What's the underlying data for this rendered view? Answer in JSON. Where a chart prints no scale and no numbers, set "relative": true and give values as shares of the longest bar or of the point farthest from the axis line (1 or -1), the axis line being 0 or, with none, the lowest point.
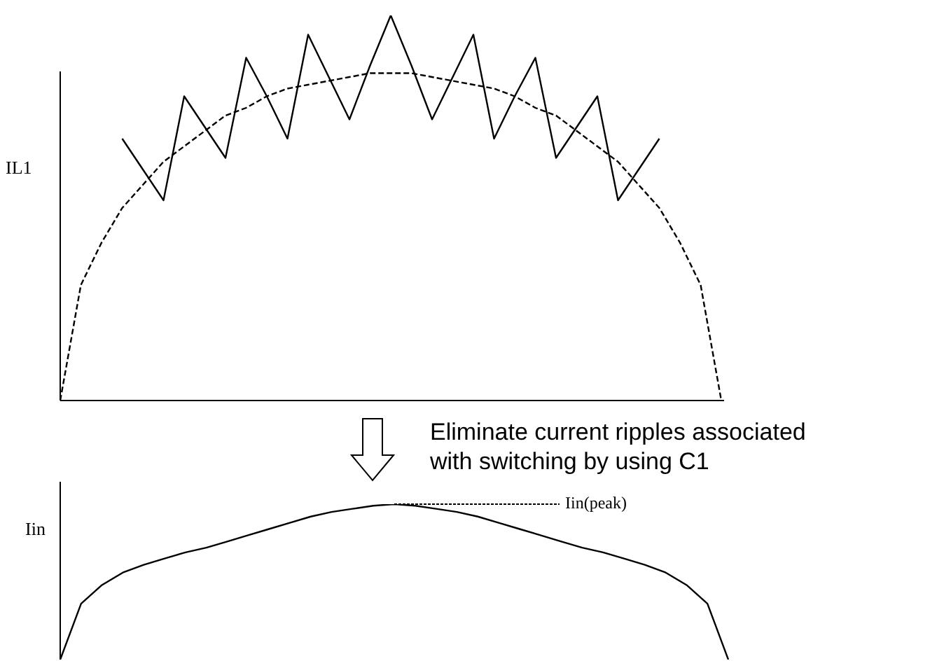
{
  "chart_data": [
    {
      "type": "line",
      "relative": true,
      "ylabel": "IL1",
      "marker": "none",
      "categories": [
        null,
        null,
        null,
        null,
        null,
        null,
        null,
        null,
        null,
        null,
        null,
        null,
        null,
        null,
        null,
        null,
        null,
        null,
        null,
        null,
        null,
        null,
        null,
        null,
        null,
        null,
        null,
        null,
        null,
        null,
        null,
        null,
        null
      ],
      "series": [
        {
          "color": "#000000",
          "line_style": "solid",
          "values": [
            null,
            null,
            null,
            0.68,
            0.6,
            0.52,
            0.79,
            0.71,
            0.63,
            0.89,
            0.79,
            0.68,
            0.95,
            0.84,
            0.73,
            0.87,
            1.0,
            0.87,
            0.73,
            0.84,
            0.95,
            0.68,
            0.79,
            0.89,
            0.63,
            0.71,
            0.79,
            0.52,
            0.6,
            0.68,
            null,
            null,
            null
          ]
        },
        {
          "color": "#000000",
          "line_style": "dashed",
          "values": [
            0,
            0.3,
            0.41,
            0.5,
            0.56,
            0.62,
            0.66,
            0.7,
            0.74,
            0.76,
            0.79,
            0.81,
            0.82,
            0.83,
            0.84,
            0.85,
            0.85,
            0.85,
            0.84,
            0.83,
            0.82,
            0.81,
            0.79,
            0.76,
            0.74,
            0.7,
            0.66,
            0.62,
            0.56,
            0.5,
            0.41,
            0.3,
            0
          ]
        }
      ]
    },
    {
      "type": "line",
      "relative": true,
      "ylabel": "Iin",
      "marker": "none",
      "annotations": [
        "Eliminate current ripples associated with switching by using C1",
        "Iin(peak)"
      ],
      "categories": [
        null,
        null,
        null,
        null,
        null,
        null,
        null,
        null,
        null,
        null,
        null,
        null,
        null,
        null,
        null,
        null,
        null,
        null,
        null,
        null,
        null,
        null,
        null,
        null,
        null,
        null,
        null,
        null,
        null,
        null,
        null,
        null,
        null
      ],
      "series": [
        {
          "color": "#000000",
          "line_style": "solid",
          "values": [
            0,
            0.36,
            0.48,
            0.56,
            0.61,
            0.65,
            0.69,
            0.72,
            0.76,
            0.8,
            0.84,
            0.88,
            0.92,
            0.95,
            0.97,
            0.99,
            1,
            0.99,
            0.97,
            0.95,
            0.92,
            0.88,
            0.84,
            0.8,
            0.76,
            0.72,
            0.69,
            0.65,
            0.61,
            0.56,
            0.48,
            0.36,
            0
          ]
        }
      ]
    }
  ]
}
